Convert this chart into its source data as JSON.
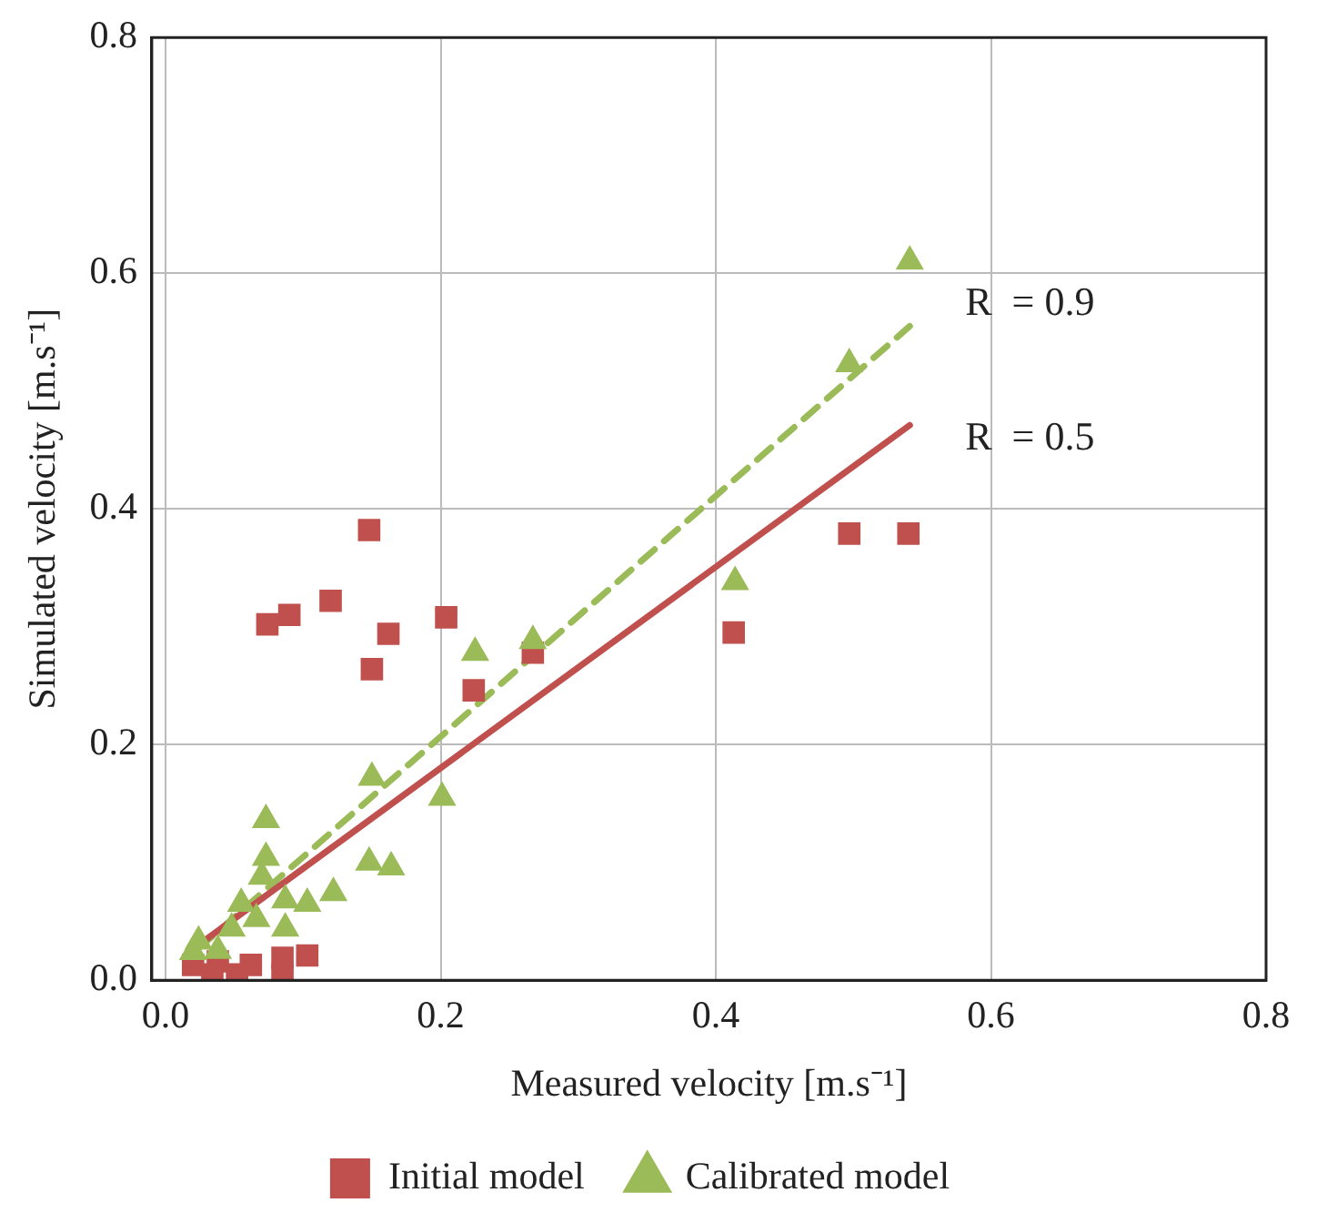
{
  "chart_data": {
    "type": "scatter",
    "xlabel": "Measured velocity [m.s⁻¹]",
    "ylabel": "Simulated velocity [m.s⁻¹]",
    "xlim": [
      -0.01,
      0.8
    ],
    "xticks": [
      {
        "value": 0,
        "label": "0.0"
      },
      0.2,
      0.4,
      0.6,
      0.8
    ],
    "ylim": [
      0,
      0.8
    ],
    "yticks": [
      {
        "value": 0,
        "label": "0.0"
      },
      0.2,
      0.4,
      0.6,
      0.8
    ],
    "grid": true,
    "legend": "bottom",
    "series": [
      {
        "name": "Initial model",
        "color": "#c0504d",
        "marker": "square",
        "x": [
          0.074,
          0.09,
          0.12,
          0.148,
          0.15,
          0.162,
          0.204,
          0.224,
          0.267,
          0.413,
          0.497,
          0.54,
          0.085,
          0.103,
          0.038,
          0.062,
          0.034,
          0.085,
          0.052,
          0.02
        ],
        "values": [
          0.302,
          0.31,
          0.322,
          0.382,
          0.264,
          0.294,
          0.308,
          0.246,
          0.278,
          0.295,
          0.379,
          0.379,
          0.019,
          0.021,
          0.016,
          0.013,
          0.005,
          0.005,
          0.005,
          0.013
        ]
      },
      {
        "name": "Calibrated model",
        "color": "#9bbb59",
        "marker": "triangle",
        "x": [
          0.225,
          0.267,
          0.414,
          0.541,
          0.497,
          0.15,
          0.073,
          0.073,
          0.07,
          0.148,
          0.164,
          0.122,
          0.103,
          0.087,
          0.055,
          0.087,
          0.066,
          0.048,
          0.024,
          0.038,
          0.02,
          0.201
        ],
        "values": [
          0.278,
          0.288,
          0.338,
          0.61,
          0.523,
          0.172,
          0.136,
          0.104,
          0.088,
          0.1,
          0.096,
          0.074,
          0.065,
          0.068,
          0.065,
          0.044,
          0.052,
          0.044,
          0.033,
          0.025,
          0.024,
          0.155
        ]
      },
      {
        "type": "line",
        "color": "#c0504d",
        "line_style": "solid",
        "x": [
          0.024,
          0.541
        ],
        "values": [
          0.03,
          0.471
        ]
      },
      {
        "type": "line",
        "color": "#9bbb59",
        "line_style": "dashed",
        "x": [
          0.024,
          0.541
        ],
        "values": [
          0.027,
          0.555
        ]
      }
    ],
    "annotations": [
      "R  = 0.9",
      "R  = 0.5"
    ]
  }
}
